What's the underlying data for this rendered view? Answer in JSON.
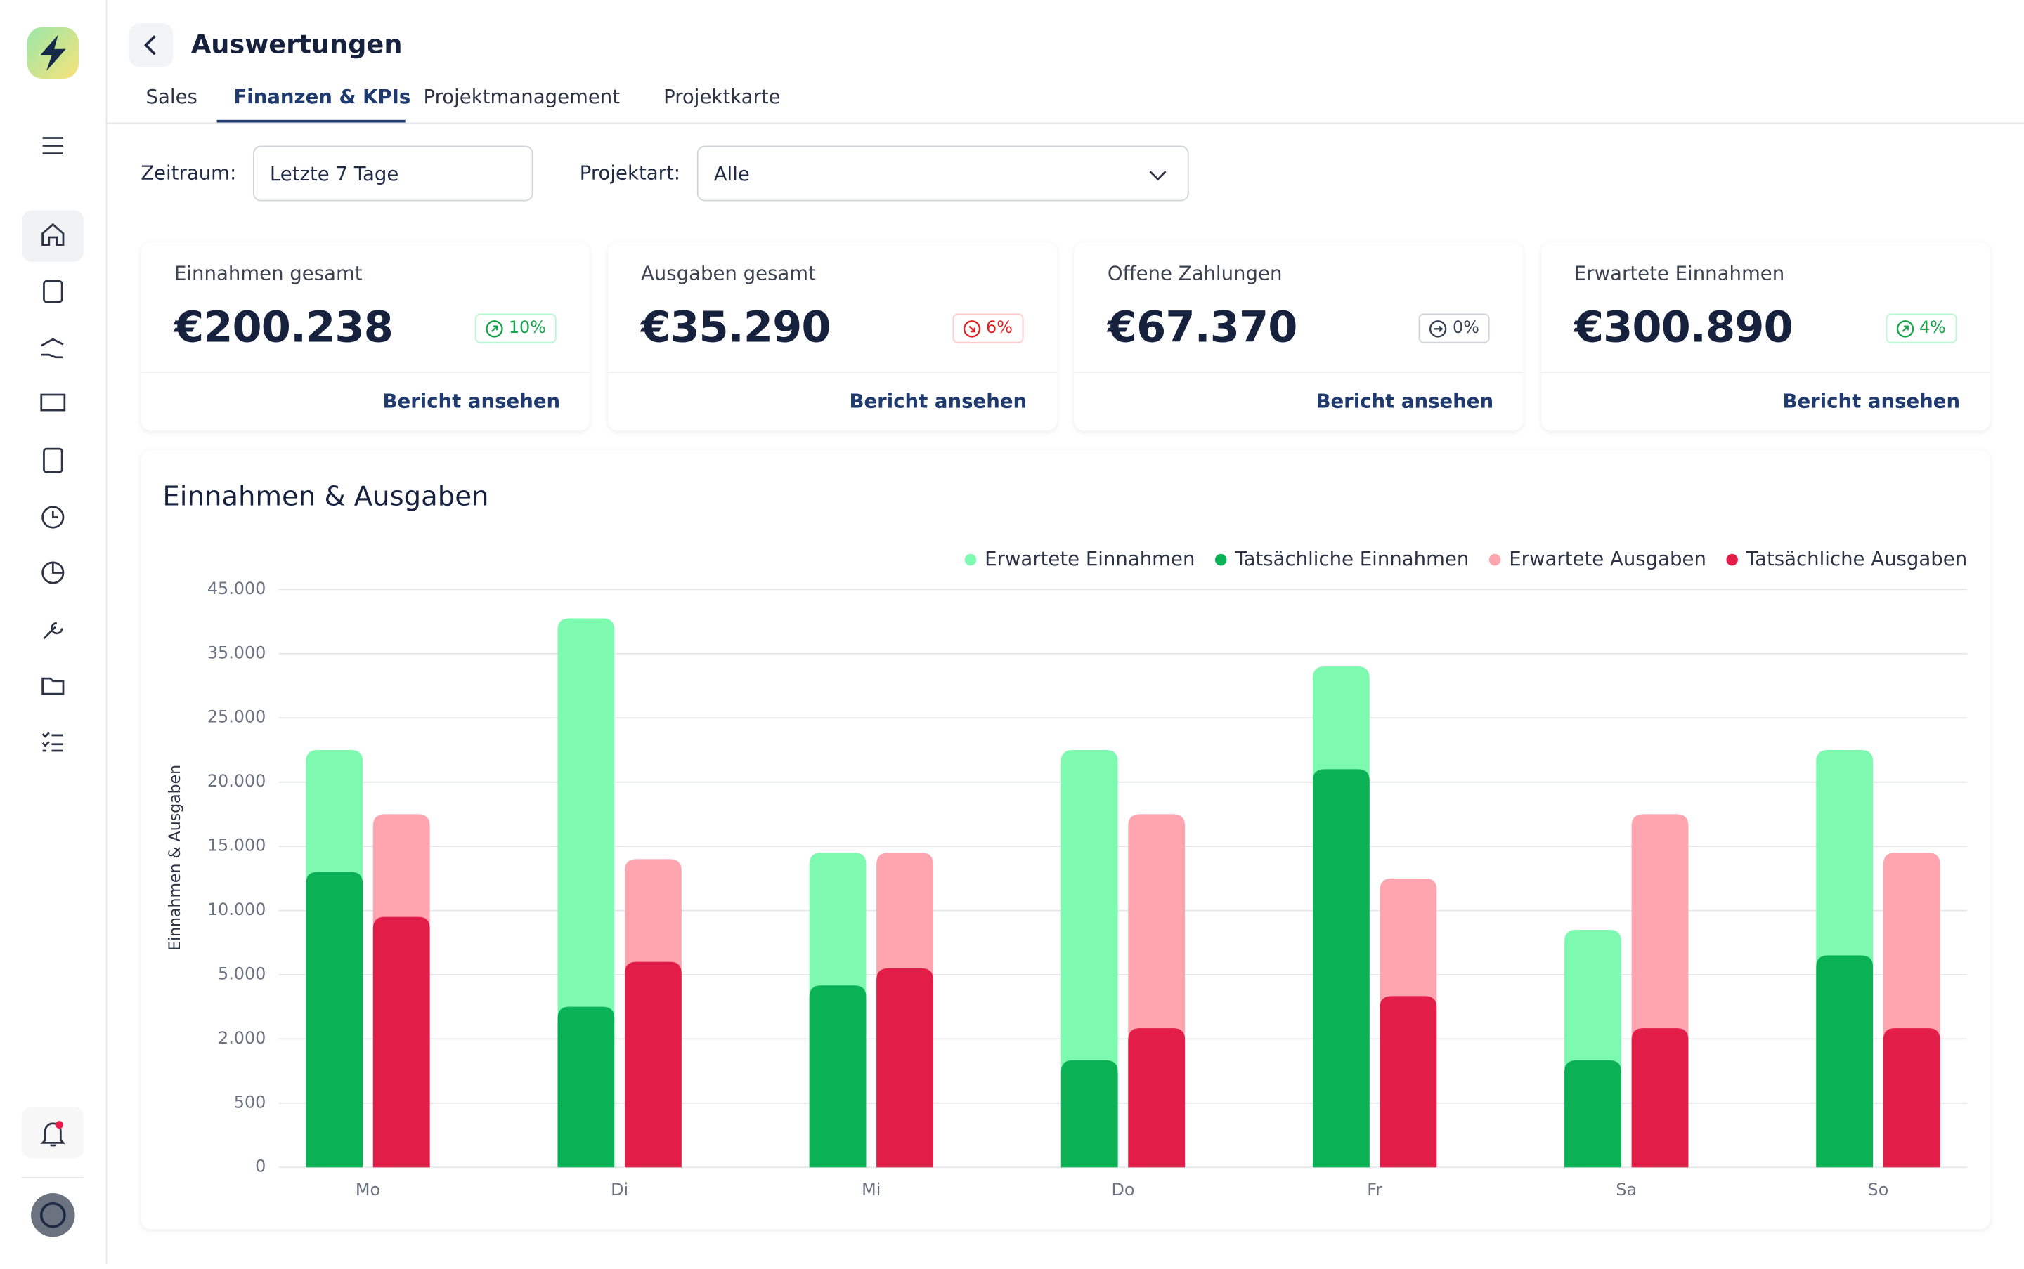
{
  "header": {
    "title": "Auswertungen"
  },
  "tabs": [
    "Sales",
    "Finanzen & KPIs",
    "Projektmanagement",
    "Projektkarte"
  ],
  "filters": [
    {
      "label": "Zeitraum:",
      "value": "Letzte 7 Tage"
    },
    {
      "label": "Projektart:",
      "value": "Alle"
    }
  ],
  "kpis": [
    {
      "label": "Einnahmen gesamt",
      "value": "€200.238",
      "change": "10%",
      "link": "Bericht ansehen"
    },
    {
      "label": "Ausgaben gesamt",
      "value": "€35.290",
      "change": "6%",
      "link": "Bericht ansehen"
    },
    {
      "label": "Offene Zahlungen",
      "value": "€67.370",
      "change": "0%",
      "link": "Bericht ansehen"
    },
    {
      "label": "Erwartete Einnahmen",
      "value": "€300.890",
      "change": "4%",
      "link": "Bericht ansehen"
    }
  ],
  "chart_data": {
    "type": "bar",
    "title": "Einnahmen & Ausgaben",
    "y_label": "Einnahmen & Ausgaben",
    "categories": [
      "Mo",
      "Di",
      "Mi",
      "Do",
      "Fr",
      "Sa",
      "So"
    ],
    "series": [
      {
        "name": "Erwartete Einnahmen",
        "color": "#7df9b0",
        "values": [
          22500,
          40500,
          14500,
          22500,
          33000,
          8500,
          22500
        ]
      },
      {
        "name": "Tatsächliche Einnahmen",
        "color": "#0bb255",
        "values": [
          13000,
          3500,
          4500,
          1500,
          21000,
          1500,
          6500
        ]
      },
      {
        "name": "Erwartete Ausgaben",
        "color": "#fea5b0",
        "values": [
          17500,
          14000,
          14500,
          17500,
          12500,
          17500,
          14500
        ]
      },
      {
        "name": "Tatsächliche Ausgaben",
        "color": "#e11d48",
        "values": [
          9500,
          6000,
          5500,
          2500,
          4000,
          2500,
          2500
        ]
      }
    ],
    "ylim": [
      0,
      45000
    ],
    "yticks": [
      0,
      500,
      {
        "value": 2000,
        "label": "2.000"
      },
      {
        "value": 5000,
        "label": "5.000"
      },
      {
        "value": 10000,
        "label": "10.000"
      },
      {
        "value": 15000,
        "label": "15.000"
      },
      {
        "value": 20000,
        "label": "20.000"
      },
      {
        "value": 25000,
        "label": "25.000"
      },
      {
        "value": 35000,
        "label": "35.000"
      },
      {
        "value": 45000,
        "label": "45.000"
      }
    ],
    "grid": true,
    "legend": "top-right"
  }
}
